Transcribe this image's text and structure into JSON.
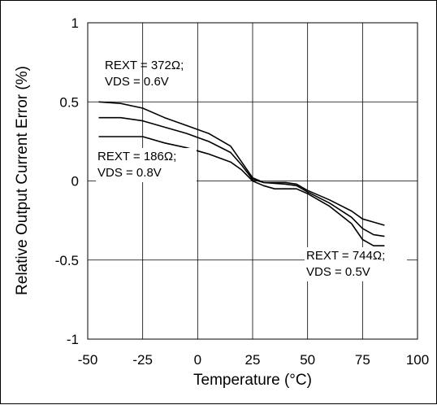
{
  "chart_data": {
    "type": "line",
    "title": "",
    "xlabel": "Temperature (°C)",
    "ylabel": "Relative Output Current Error (%)",
    "xlim": [
      -50,
      100
    ],
    "ylim": [
      -1,
      1
    ],
    "x_ticks": [
      "-50",
      "-25",
      "0",
      "25",
      "50",
      "75",
      "100"
    ],
    "y_ticks": [
      "1",
      "0.5",
      "0",
      "-0.5",
      "-1"
    ],
    "grid": true,
    "series": [
      {
        "name": "REXT = 372Ω; VDS = 0.6V",
        "x": [
          -45,
          -35,
          -25,
          -15,
          -5,
          5,
          15,
          20,
          25,
          30,
          40,
          45,
          50,
          60,
          70,
          75,
          80,
          85
        ],
        "y": [
          0.5,
          0.49,
          0.46,
          0.4,
          0.35,
          0.3,
          0.22,
          0.12,
          0.02,
          -0.01,
          -0.01,
          -0.02,
          -0.06,
          -0.12,
          -0.19,
          -0.24,
          -0.26,
          -0.28
        ]
      },
      {
        "name": "REXT = 186Ω; VDS = 0.8V",
        "x": [
          -45,
          -35,
          -25,
          -15,
          -5,
          5,
          15,
          20,
          25,
          30,
          40,
          45,
          50,
          60,
          70,
          75,
          80,
          85
        ],
        "y": [
          0.4,
          0.4,
          0.38,
          0.34,
          0.3,
          0.25,
          0.18,
          0.1,
          0.01,
          -0.01,
          -0.02,
          -0.03,
          -0.07,
          -0.14,
          -0.23,
          -0.3,
          -0.34,
          -0.35
        ]
      },
      {
        "name": "REXT = 744Ω; VDS = 0.5V",
        "x": [
          -45,
          -35,
          -25,
          -15,
          -5,
          5,
          15,
          20,
          25,
          30,
          35,
          45,
          50,
          60,
          70,
          75,
          80,
          85
        ],
        "y": [
          0.28,
          0.28,
          0.28,
          0.24,
          0.21,
          0.17,
          0.12,
          0.07,
          0.0,
          -0.03,
          -0.05,
          -0.05,
          -0.08,
          -0.16,
          -0.27,
          -0.37,
          -0.41,
          -0.41
        ]
      }
    ],
    "annotations": [
      {
        "lines": [
          "REXT = 372Ω;",
          "VDS = 0.6V"
        ],
        "series": 0
      },
      {
        "lines": [
          "REXT = 186Ω;",
          "VDS = 0.8V"
        ],
        "series": 1
      },
      {
        "lines": [
          "REXT = 744Ω;",
          "VDS = 0.5V"
        ],
        "series": 2
      }
    ]
  }
}
